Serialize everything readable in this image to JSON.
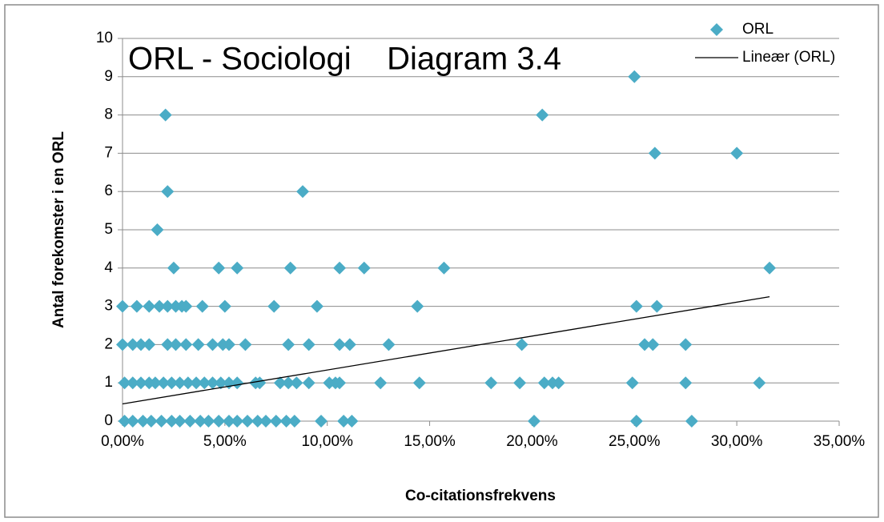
{
  "chart_data": {
    "type": "scatter",
    "title": "ORL - Sociologi    Diagram 3.4",
    "x_label": "Co-citationsfrekvens",
    "y_label": "Antal forekomster i en ORL",
    "xlim": [
      0,
      35
    ],
    "ylim": [
      0,
      10
    ],
    "xticks": [
      {
        "value": 0,
        "label": "0,00%"
      },
      {
        "value": 5,
        "label": "5,00%"
      },
      {
        "value": 10,
        "label": "10,00%"
      },
      {
        "value": 15,
        "label": "15,00%"
      },
      {
        "value": 20,
        "label": "20,00%"
      },
      {
        "value": 25,
        "label": "25,00%"
      },
      {
        "value": 30,
        "label": "30,00%"
      },
      {
        "value": 35,
        "label": "35,00%"
      }
    ],
    "yticks": [
      0,
      1,
      2,
      3,
      4,
      5,
      6,
      7,
      8,
      9,
      10
    ],
    "grid": true,
    "legend": "top-right",
    "series": [
      {
        "name": "ORL",
        "color": "#4bacc6",
        "x": [
          25.0,
          2.1,
          20.5,
          26.0,
          30.0,
          2.2,
          8.8,
          1.7,
          2.5,
          4.7,
          5.6,
          8.2,
          10.6,
          11.8,
          15.7,
          31.6,
          0,
          0.7,
          1.3,
          1.8,
          2.2,
          2.6,
          2.9,
          3.1,
          3.9,
          5.0,
          7.4,
          9.5,
          14.4,
          25.1,
          26.1,
          0,
          0.5,
          0.9,
          1.3,
          2.2,
          2.6,
          3.1,
          3.7,
          4.4,
          4.9,
          5.2,
          6.0,
          8.1,
          9.1,
          10.6,
          11.1,
          13.0,
          19.5,
          25.5,
          25.9,
          27.5,
          0.1,
          0.5,
          0.9,
          1.3,
          1.6,
          2.0,
          2.4,
          2.8,
          3.2,
          3.6,
          4.0,
          4.4,
          4.8,
          5.2,
          5.6,
          6.5,
          6.7,
          7.7,
          8.1,
          8.5,
          9.1,
          10.1,
          10.4,
          10.6,
          12.6,
          14.5,
          18.0,
          19.4,
          20.6,
          21.0,
          21.3,
          24.9,
          27.5,
          31.1,
          0.1,
          0.5,
          1.0,
          1.4,
          1.9,
          2.4,
          2.8,
          3.3,
          3.8,
          4.2,
          4.7,
          5.2,
          5.6,
          6.1,
          6.6,
          7.0,
          7.5,
          8.0,
          8.4,
          9.7,
          10.8,
          11.2,
          20.1,
          25.1,
          27.8
        ],
        "values": [
          9,
          8,
          8,
          7,
          7,
          6,
          6,
          5,
          4,
          4,
          4,
          4,
          4,
          4,
          4,
          4,
          3,
          3,
          3,
          3,
          3,
          3,
          3,
          3,
          3,
          3,
          3,
          3,
          3,
          3,
          3,
          2,
          2,
          2,
          2,
          2,
          2,
          2,
          2,
          2,
          2,
          2,
          2,
          2,
          2,
          2,
          2,
          2,
          2,
          2,
          2,
          2,
          1,
          1,
          1,
          1,
          1,
          1,
          1,
          1,
          1,
          1,
          1,
          1,
          1,
          1,
          1,
          1,
          1,
          1,
          1,
          1,
          1,
          1,
          1,
          1,
          1,
          1,
          1,
          1,
          1,
          1,
          1,
          1,
          1,
          1,
          0,
          0,
          0,
          0,
          0,
          0,
          0,
          0,
          0,
          0,
          0,
          0,
          0,
          0,
          0,
          0,
          0,
          0,
          0,
          0,
          0,
          0,
          0,
          0,
          0
        ]
      },
      {
        "name": "Lineær (ORL)",
        "color": "#000000",
        "kind": "line",
        "x": [
          0,
          31.6
        ],
        "values": [
          0.45,
          3.25
        ]
      }
    ]
  }
}
